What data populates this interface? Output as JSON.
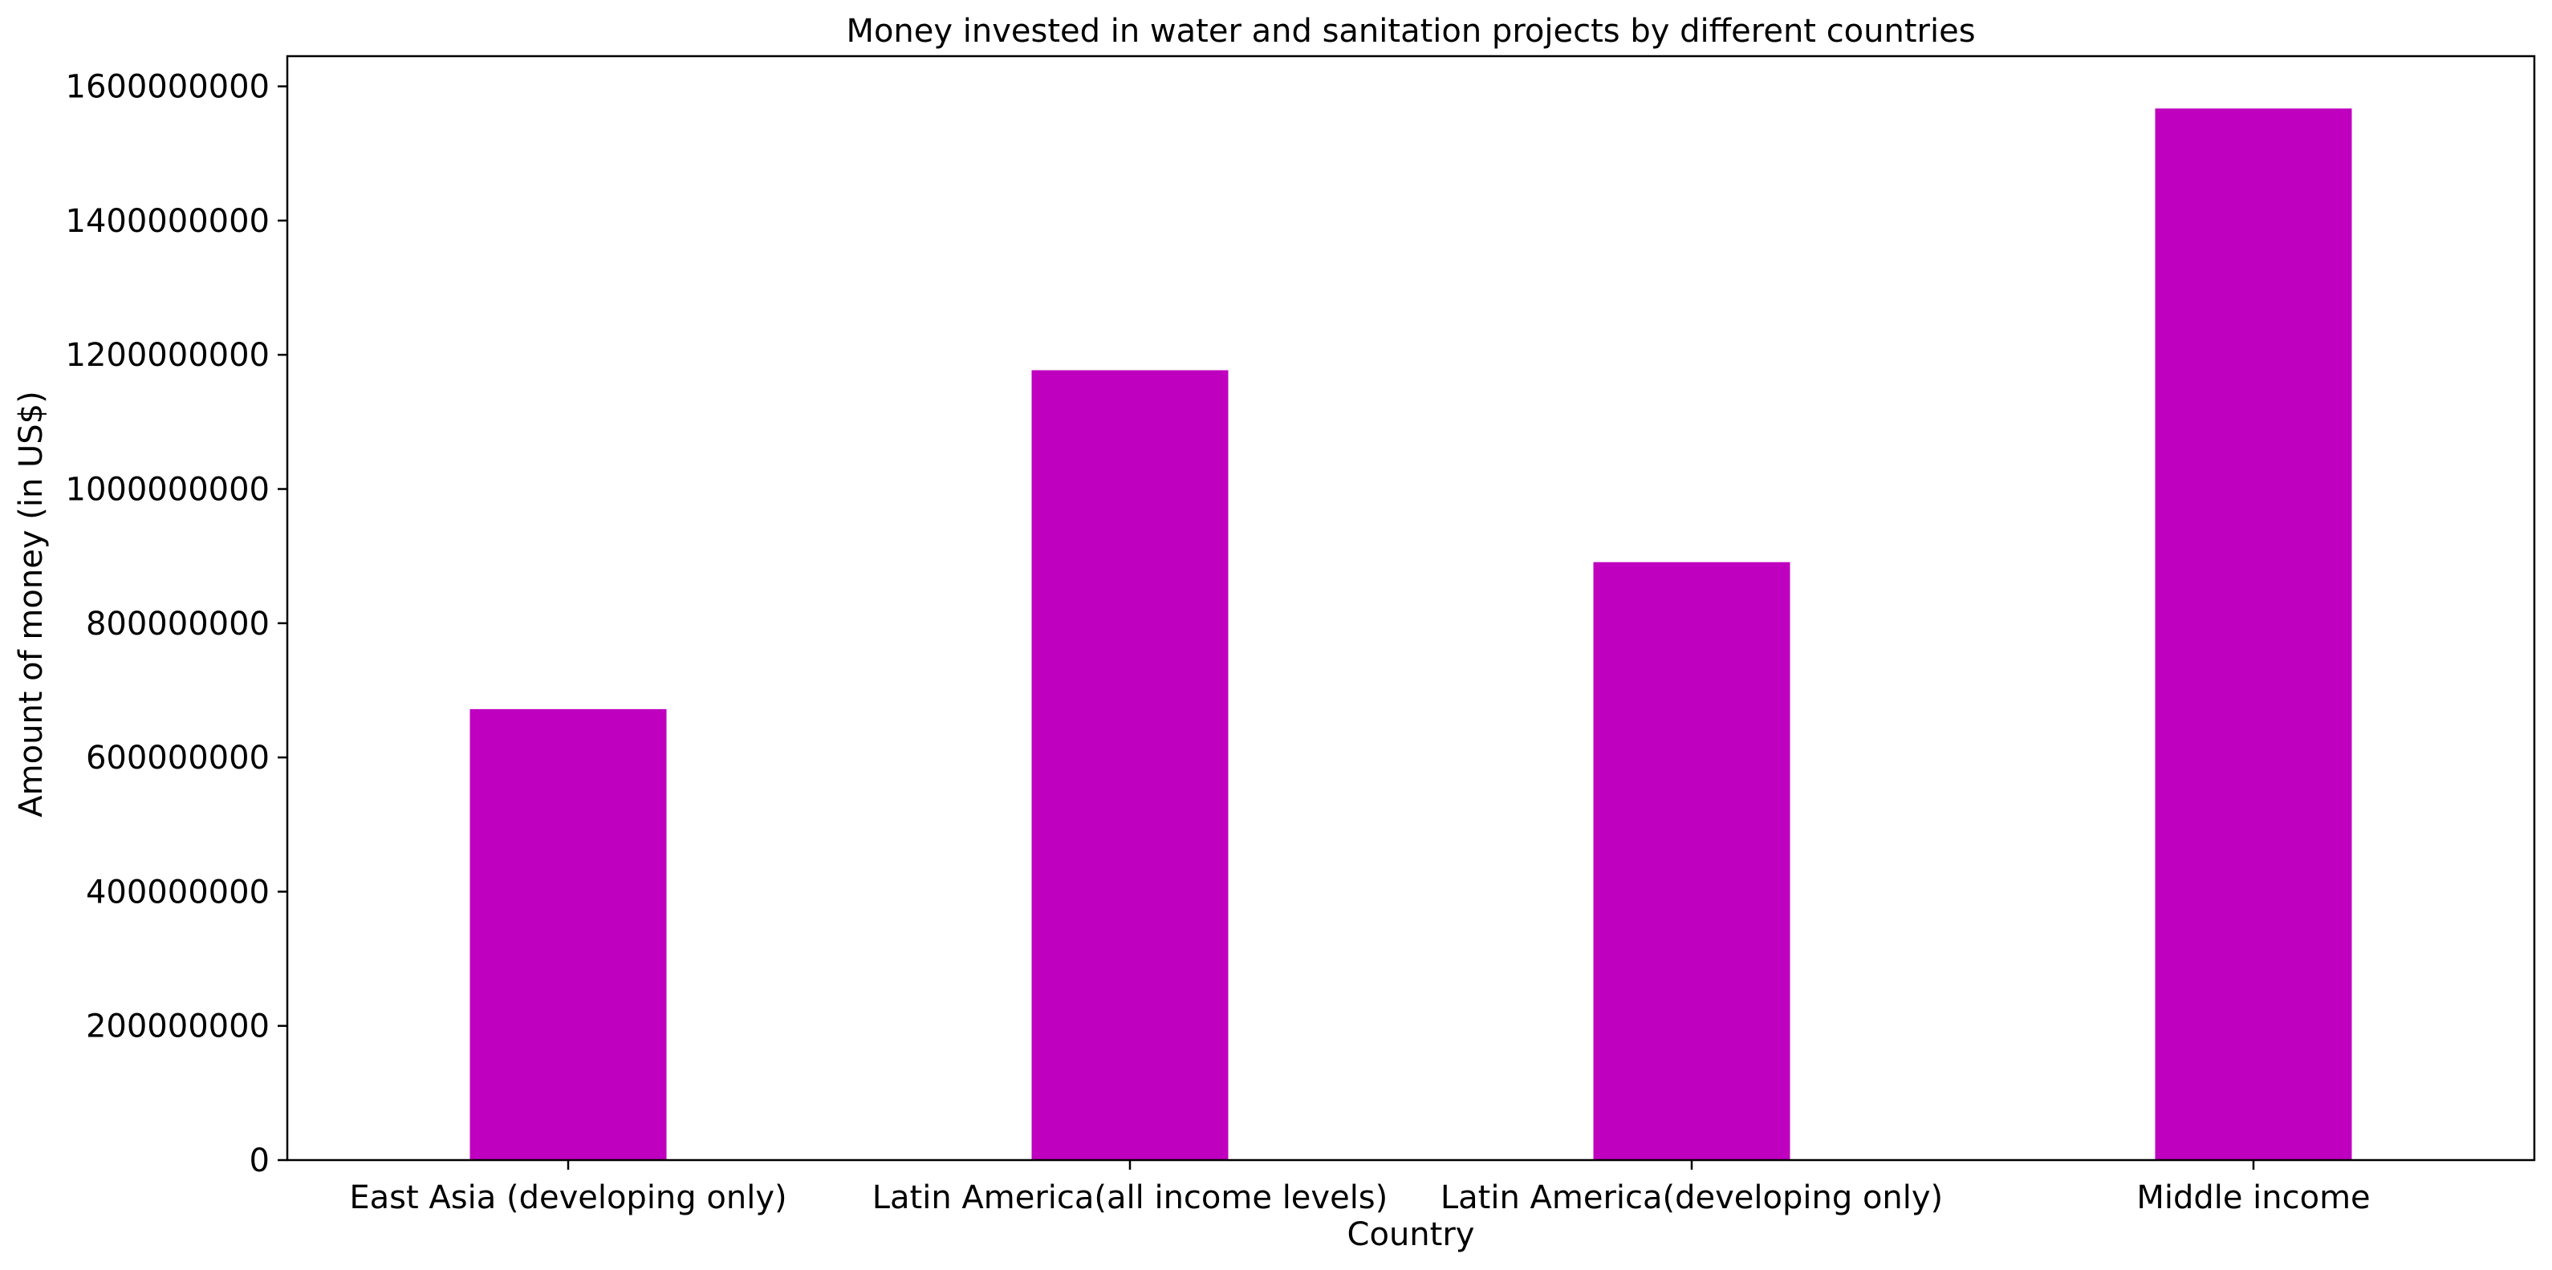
{
  "chart_data": {
    "type": "bar",
    "title": "Money invested in water and sanitation projects by different countries",
    "xlabel": "Country",
    "ylabel": "Amount of money (in US$)",
    "categories": [
      "East Asia (developing only)",
      "Latin America(all income levels)",
      "Latin America(developing only)",
      "Middle income"
    ],
    "values": [
      672000000,
      1177000000,
      891000000,
      1567000000
    ],
    "ylim": [
      0,
      1645000000
    ],
    "yticks": [
      0,
      200000000,
      400000000,
      600000000,
      800000000,
      1000000000,
      1200000000,
      1400000000,
      1600000000
    ],
    "ytick_labels": [
      "0",
      "200000000",
      "400000000",
      "600000000",
      "800000000",
      "1000000000",
      "1200000000",
      "1400000000",
      "1600000000"
    ],
    "bar_color": "#bf00bf",
    "grid": false,
    "legend": "none"
  }
}
